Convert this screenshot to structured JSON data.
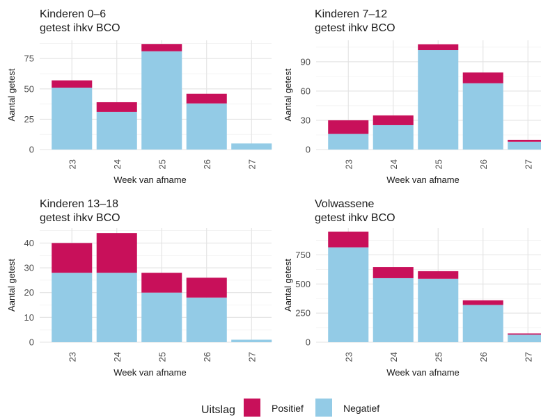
{
  "chart_data": [
    {
      "type": "bar",
      "stacked": true,
      "title": "Kinderen 0–6",
      "subtitle": "getest ihkv BCO",
      "xlabel": "Week van afname",
      "ylabel": "Aantal getest",
      "categories": [
        "23",
        "24",
        "25",
        "26",
        "27"
      ],
      "ylim": [
        0,
        90
      ],
      "yticks": [
        0,
        25,
        50,
        75
      ],
      "series": [
        {
          "name": "Negatief",
          "values": [
            51,
            31,
            81,
            38,
            5
          ]
        },
        {
          "name": "Positief",
          "values": [
            6,
            8,
            6,
            8,
            0
          ]
        }
      ]
    },
    {
      "type": "bar",
      "stacked": true,
      "title": "Kinderen 7–12",
      "subtitle": "getest ihkv BCO",
      "xlabel": "Week van afname",
      "ylabel": "Aantal getest",
      "categories": [
        "23",
        "24",
        "25",
        "26",
        "27"
      ],
      "ylim": [
        0,
        112
      ],
      "yticks": [
        0,
        30,
        60,
        90
      ],
      "series": [
        {
          "name": "Negatief",
          "values": [
            16,
            25,
            102,
            68,
            8
          ]
        },
        {
          "name": "Positief",
          "values": [
            14,
            10,
            6,
            11,
            2
          ]
        }
      ]
    },
    {
      "type": "bar",
      "stacked": true,
      "title": "Kinderen 13–18",
      "subtitle": "getest ihkv BCO",
      "xlabel": "Week van afname",
      "ylabel": "Aantal getest",
      "categories": [
        "23",
        "24",
        "25",
        "26",
        "27"
      ],
      "ylim": [
        0,
        46
      ],
      "yticks": [
        0,
        10,
        20,
        30,
        40
      ],
      "series": [
        {
          "name": "Negatief",
          "values": [
            28,
            28,
            20,
            18,
            1
          ]
        },
        {
          "name": "Positief",
          "values": [
            12,
            16,
            8,
            8,
            0
          ]
        }
      ]
    },
    {
      "type": "bar",
      "stacked": true,
      "title": "Volwassene",
      "subtitle": "getest ihkv BCO",
      "xlabel": "Week van afname",
      "ylabel": "Aantal getest",
      "categories": [
        "23",
        "24",
        "25",
        "26",
        "27"
      ],
      "ylim": [
        0,
        980
      ],
      "yticks": [
        0,
        250,
        500,
        750
      ],
      "series": [
        {
          "name": "Negatief",
          "values": [
            815,
            550,
            545,
            320,
            65
          ]
        },
        {
          "name": "Positief",
          "values": [
            135,
            95,
            65,
            40,
            10
          ]
        }
      ]
    }
  ],
  "legend": {
    "title": "Uitslag",
    "items": [
      {
        "label": "Positief",
        "color": "#c8105a"
      },
      {
        "label": "Negatief",
        "color": "#93cbe6"
      }
    ]
  }
}
